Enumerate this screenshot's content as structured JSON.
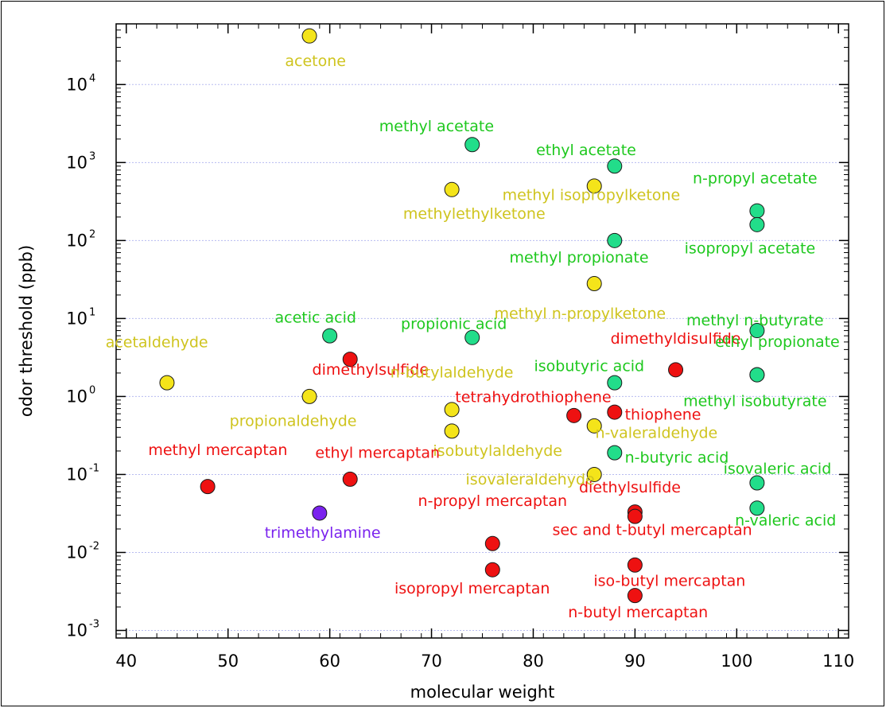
{
  "chart_data": {
    "type": "scatter",
    "title": "",
    "xlabel": "molecular weight",
    "ylabel": "odor threshold (ppb)",
    "xlim": [
      39,
      111
    ],
    "ylim": [
      0.0008,
      60000
    ],
    "yscale": "log",
    "x_ticks": [
      40,
      50,
      60,
      70,
      80,
      90,
      100,
      110
    ],
    "y_ticks": [
      {
        "value": 0.001,
        "base": "10",
        "exp": "-3"
      },
      {
        "value": 0.01,
        "base": "10",
        "exp": "-2"
      },
      {
        "value": 0.1,
        "base": "10",
        "exp": "-1"
      },
      {
        "value": 1,
        "base": "10",
        "exp": "0"
      },
      {
        "value": 10,
        "base": "10",
        "exp": "1"
      },
      {
        "value": 100,
        "base": "10",
        "exp": "2"
      },
      {
        "value": 1000,
        "base": "10",
        "exp": "3"
      },
      {
        "value": 10000,
        "base": "10",
        "exp": "4"
      }
    ],
    "grid": "horizontal dotted",
    "colors": {
      "yellow_fill": "#f4e41a",
      "yellow_text": "#cfc41f",
      "green_fill": "#22dd8a",
      "green_text": "#1ec81e",
      "red_fill": "#ee1111",
      "red_text": "#ee1111",
      "purple_fill": "#7a22ee",
      "purple_text": "#7a22ee",
      "grid": "#b8bcf0"
    },
    "points": [
      {
        "name": "acetone",
        "x": 58,
        "y": 42000,
        "group": "yellow",
        "lx": 58.6,
        "ly": 20000,
        "anchor": "middle"
      },
      {
        "name": "methyl acetate",
        "x": 74,
        "y": 1700,
        "group": "green",
        "lx": 70.5,
        "ly": 2900,
        "anchor": "middle"
      },
      {
        "name": "ethyl acetate",
        "x": 88,
        "y": 900,
        "group": "green",
        "lx": 85.2,
        "ly": 1430,
        "anchor": "middle"
      },
      {
        "name": "methylethylketone",
        "x": 72,
        "y": 450,
        "group": "yellow",
        "lx": 74.2,
        "ly": 220,
        "anchor": "middle"
      },
      {
        "name": "methyl isopropylketone",
        "x": 86,
        "y": 500,
        "group": "yellow",
        "lx": 85.7,
        "ly": 380,
        "anchor": "middle"
      },
      {
        "name": "n-propyl acetate",
        "x": 102,
        "y": 240,
        "group": "green",
        "lx": 101.8,
        "ly": 620,
        "anchor": "middle"
      },
      {
        "name": "isopropyl acetate",
        "x": 102,
        "y": 160,
        "group": "green",
        "lx": 101.3,
        "ly": 79,
        "anchor": "middle"
      },
      {
        "name": "methyl propionate",
        "x": 88,
        "y": 100,
        "group": "green",
        "lx": 84.5,
        "ly": 60,
        "anchor": "middle"
      },
      {
        "name": "methyl n-propylketone",
        "x": 86,
        "y": 28,
        "group": "yellow",
        "lx": 84.6,
        "ly": 11.5,
        "anchor": "middle"
      },
      {
        "name": "methyl n-butyrate",
        "x": 102,
        "y": 7,
        "group": "green",
        "lx": 101.8,
        "ly": 9.4,
        "anchor": "middle"
      },
      {
        "name": "acetic acid",
        "x": 60,
        "y": 6,
        "group": "green",
        "lx": 58.6,
        "ly": 10.2,
        "anchor": "middle"
      },
      {
        "name": "propionic acid",
        "x": 74,
        "y": 5.7,
        "group": "green",
        "lx": 72.2,
        "ly": 8.5,
        "anchor": "middle"
      },
      {
        "name": "acetaldehyde",
        "x": 44,
        "y": 1.5,
        "group": "yellow",
        "lx": 43.0,
        "ly": 4.9,
        "anchor": "middle"
      },
      {
        "name": "dimethylsulfide",
        "x": 62,
        "y": 3,
        "group": "red",
        "lx": 64.0,
        "ly": 2.2,
        "anchor": "middle"
      },
      {
        "name": "dimethyldisulfide",
        "x": 94,
        "y": 2.2,
        "group": "red",
        "lx": 94.0,
        "ly": 5.5,
        "anchor": "middle"
      },
      {
        "name": "ethyl propionate",
        "x": 102,
        "y": 1.9,
        "group": "green",
        "lx": 104.0,
        "ly": 5.0,
        "anchor": "middle"
      },
      {
        "name": "n-butylaldehyde",
        "x": 72,
        "y": 0.68,
        "group": "yellow",
        "lx": 72.0,
        "ly": 2.02,
        "anchor": "middle"
      },
      {
        "name": "isobutyric acid",
        "x": 88,
        "y": 1.5,
        "group": "green",
        "lx": 85.5,
        "ly": 2.45,
        "anchor": "middle"
      },
      {
        "name": "methyl isobutyrate",
        "x": 102,
        "y": 1.9,
        "group": "green",
        "lx": 101.8,
        "ly": 0.87,
        "anchor": "middle"
      },
      {
        "name": "propionaldehyde",
        "x": 58,
        "y": 1.0,
        "group": "yellow",
        "lx": 56.4,
        "ly": 0.48,
        "anchor": "middle"
      },
      {
        "name": "tetrahydrothiophene",
        "x": 84,
        "y": 0.57,
        "group": "red",
        "lx": 80.0,
        "ly": 0.97,
        "anchor": "middle"
      },
      {
        "name": "thiophene",
        "x": 88,
        "y": 0.63,
        "group": "red",
        "lx": 89.0,
        "ly": 0.58,
        "anchor": "start"
      },
      {
        "name": "n-valeraldehyde",
        "x": 86,
        "y": 0.42,
        "group": "yellow",
        "lx": 86.1,
        "ly": 0.34,
        "anchor": "start"
      },
      {
        "name": "isobutylaldehyde",
        "x": 72,
        "y": 0.36,
        "group": "yellow",
        "lx": 76.5,
        "ly": 0.2,
        "anchor": "middle"
      },
      {
        "name": "n-butyric acid",
        "x": 88,
        "y": 0.19,
        "group": "green",
        "lx": 89.0,
        "ly": 0.163,
        "anchor": "start"
      },
      {
        "name": "methyl mercaptan",
        "x": 48,
        "y": 0.07,
        "group": "red",
        "lx": 49.0,
        "ly": 0.205,
        "anchor": "middle"
      },
      {
        "name": "ethyl mercaptan",
        "x": 62,
        "y": 0.087,
        "group": "red",
        "lx": 64.7,
        "ly": 0.188,
        "anchor": "middle"
      },
      {
        "name": "isovaleric acid",
        "x": 102,
        "y": 0.078,
        "group": "green",
        "lx": 104.0,
        "ly": 0.118,
        "anchor": "middle"
      },
      {
        "name": "isovaleraldehyde",
        "x": 86,
        "y": 0.1,
        "group": "yellow",
        "lx": 79.7,
        "ly": 0.086,
        "anchor": "middle"
      },
      {
        "name": "diethylsulfide",
        "x": 90,
        "y": 0.033,
        "group": "red",
        "lx": 89.5,
        "ly": 0.068,
        "anchor": "middle"
      },
      {
        "name": "trimethylamine",
        "x": 59,
        "y": 0.032,
        "group": "purple",
        "lx": 59.3,
        "ly": 0.0178,
        "anchor": "middle"
      },
      {
        "name": "n-propyl mercaptan",
        "x": 76,
        "y": 0.013,
        "group": "red",
        "lx": 76.0,
        "ly": 0.0455,
        "anchor": "middle"
      },
      {
        "name": "sec and t-butyl mercaptan",
        "x": 90,
        "y": 0.029,
        "group": "red",
        "lx": 91.7,
        "ly": 0.0194,
        "anchor": "middle"
      },
      {
        "name": "n-valeric acid",
        "x": 102,
        "y": 0.037,
        "group": "green",
        "lx": 104.8,
        "ly": 0.0255,
        "anchor": "middle"
      },
      {
        "name": "isopropyl mercaptan",
        "x": 76,
        "y": 0.006,
        "group": "red",
        "lx": 74.0,
        "ly": 0.00345,
        "anchor": "middle"
      },
      {
        "name": "iso-butyl mercaptan",
        "x": 90,
        "y": 0.0069,
        "group": "red",
        "lx": 93.4,
        "ly": 0.0043,
        "anchor": "middle"
      },
      {
        "name": "n-butyl mercaptan",
        "x": 90,
        "y": 0.0028,
        "group": "red",
        "lx": 90.3,
        "ly": 0.0017,
        "anchor": "middle"
      }
    ]
  }
}
